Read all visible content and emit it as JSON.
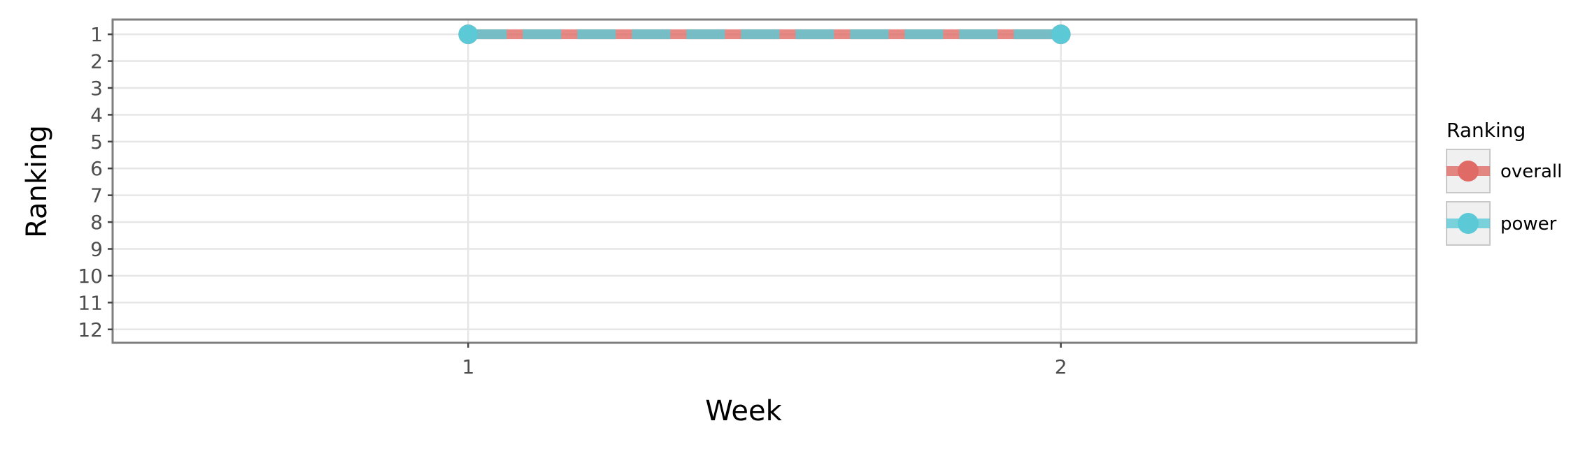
{
  "chart_data": {
    "type": "line",
    "title": "",
    "xlabel": "Week",
    "ylabel": "Ranking",
    "x_ticks": [
      "1",
      "2"
    ],
    "y_ticks": [
      "1",
      "2",
      "3",
      "4",
      "5",
      "6",
      "7",
      "8",
      "9",
      "10",
      "11",
      "12"
    ],
    "xlim": [
      0.4,
      2.6
    ],
    "ylim": [
      12.5,
      0.45
    ],
    "y_reversed": true,
    "grid": true,
    "legend": {
      "title": "Ranking",
      "placement": "right",
      "entries": [
        "overall",
        "power"
      ]
    },
    "series": [
      {
        "name": "overall",
        "x": [
          1,
          2
        ],
        "y": [
          1,
          1
        ],
        "color": "#E06B66",
        "line_style": "solid"
      },
      {
        "name": "power",
        "x": [
          1,
          2
        ],
        "y": [
          1,
          1
        ],
        "color": "#5BCAD6",
        "line_style": "dashed"
      }
    ]
  }
}
